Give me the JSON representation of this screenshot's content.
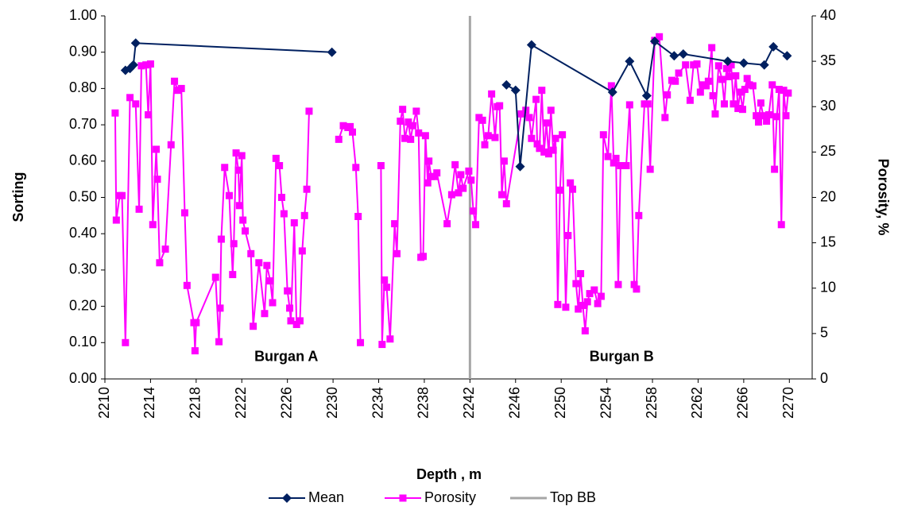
{
  "chart_data": {
    "type": "line",
    "xlabel": "Depth , m",
    "ylabel": "Sorting",
    "y2label": "Porosity, %",
    "xlim": [
      2210,
      2272
    ],
    "ylim": [
      0,
      1
    ],
    "y2lim": [
      0,
      40
    ],
    "xticks": [
      2210,
      2214,
      2218,
      2222,
      2226,
      2230,
      2234,
      2238,
      2242,
      2246,
      2250,
      2254,
      2258,
      2262,
      2266,
      2270
    ],
    "yticks": [
      {
        "value": 0,
        "label": "0.00"
      },
      {
        "value": 0.1,
        "label": "0.10"
      },
      {
        "value": 0.2,
        "label": "0.20"
      },
      {
        "value": 0.3,
        "label": "0.30"
      },
      {
        "value": 0.4,
        "label": "0.40"
      },
      {
        "value": 0.5,
        "label": "0.50"
      },
      {
        "value": 0.6,
        "label": "0.60"
      },
      {
        "value": 0.7,
        "label": "0.70"
      },
      {
        "value": 0.8,
        "label": "0.80"
      },
      {
        "value": 0.9,
        "label": "0.90"
      },
      {
        "value": 1,
        "label": "1.00"
      }
    ],
    "y2ticks": [
      0,
      5,
      10,
      15,
      20,
      25,
      30,
      35,
      40
    ],
    "legend": "bottom",
    "annotations": [
      {
        "text": "Burgan A",
        "x": 2225.9,
        "y": 0.06
      },
      {
        "text": "Burgan B",
        "x": 2255.3,
        "y": 0.06
      }
    ],
    "series": [
      {
        "name": "Mean",
        "color": "#002060",
        "marker": "diamond",
        "x": [
          2211.8,
          2212.2,
          2212.5,
          2212.7,
          2229.9,
          null,
          2245.2,
          2246.0,
          2246.4,
          2247.4,
          2254.5,
          2256.0,
          2257.5,
          2258.2,
          2259.9,
          2260.7,
          2264.6,
          2266.0,
          2267.8,
          2268.6,
          2269.8
        ],
        "values": [
          0.85,
          0.855,
          0.865,
          0.925,
          0.9,
          null,
          0.81,
          0.795,
          0.585,
          0.92,
          0.79,
          0.875,
          0.78,
          0.93,
          0.89,
          0.895,
          0.875,
          0.87,
          0.865,
          0.915,
          0.89
        ]
      },
      {
        "name": "Porosity",
        "color": "#ff00ff",
        "marker": "square",
        "axis": "y2",
        "x": [
          2210.9,
          2211.0,
          2211.3,
          2211.5,
          2211.8,
          2212.2,
          2212.7,
          2213.0,
          2213.2,
          2213.6,
          2213.8,
          2214.0,
          2214.2,
          2214.5,
          2214.6,
          2214.8,
          2215.3,
          2215.8,
          2216.1,
          2216.4,
          2216.7,
          2217.0,
          2217.2,
          2217.8,
          2217.9,
          2218.0,
          2219.7,
          2220.0,
          2220.1,
          2220.2,
          2220.5,
          2220.9,
          2221.2,
          2221.3,
          2221.5,
          2221.7,
          2221.8,
          2222.0,
          2222.1,
          2222.3,
          2222.8,
          2223.0,
          2223.5,
          2224.0,
          2224.2,
          2224.5,
          2224.7,
          2225.0,
          2225.3,
          2225.5,
          2225.7,
          2226.0,
          2226.2,
          2226.3,
          2226.6,
          2226.8,
          2227.1,
          2227.3,
          2227.5,
          2227.7,
          2227.9,
          null,
          2230.5,
          2230.9,
          2231.3,
          2231.5,
          2231.7,
          2232.0,
          2232.2,
          2232.4,
          null,
          2234.2,
          2234.3,
          2234.5,
          2234.7,
          2235.0,
          2235.4,
          2235.6,
          2235.9,
          2236.1,
          2236.3,
          2236.6,
          2236.8,
          2237.0,
          2237.3,
          2237.5,
          2237.7,
          2237.9,
          2238.1,
          2238.3,
          2238.4,
          2238.6,
          2238.9,
          2239.1,
          2240.0,
          2240.4,
          2240.7,
          2241.0,
          2241.2,
          2241.4,
          2241.9,
          2242.1,
          2242.3,
          2242.5,
          2242.8,
          2243.1,
          2243.3,
          2243.6,
          2243.9,
          2244.2,
          2244.4,
          2244.6,
          2244.8,
          2245.0,
          2245.2,
          2246.5,
          2246.9,
          2247.2,
          2247.4,
          2247.8,
          2247.9,
          2248.1,
          2248.3,
          2248.5,
          2248.7,
          2248.9,
          2249.1,
          2249.3,
          2249.5,
          2249.7,
          2249.9,
          2250.1,
          2250.4,
          2250.6,
          2250.8,
          2251.0,
          2251.3,
          2251.5,
          2251.7,
          2251.9,
          2252.1,
          2252.3,
          2252.5,
          2252.9,
          2253.2,
          2253.5,
          2253.7,
          2254.1,
          2254.4,
          2254.6,
          2254.8,
          2255.0,
          2255.2,
          2255.7,
          2256.0,
          2256.4,
          2256.6,
          2256.8,
          2257.3,
          2257.6,
          2257.8,
          2258.2,
          2258.6,
          2259.1,
          2259.3,
          2259.7,
          2260.0,
          2260.3,
          2260.9,
          2261.3,
          2261.6,
          2261.9,
          2262.2,
          2262.4,
          2262.7,
          2262.9,
          2263.2,
          2263.3,
          2263.5,
          2263.8,
          2264.1,
          2264.3,
          2264.5,
          2264.7,
          2264.9,
          2265.1,
          2265.3,
          2265.5,
          2265.7,
          2265.9,
          2266.1,
          2266.3,
          2266.5,
          2266.8,
          2267.1,
          2267.3,
          2267.5,
          2267.7,
          2268.0,
          2268.2,
          2268.5,
          2268.7,
          2268.9,
          2269.1,
          2269.3,
          2269.5,
          2269.7,
          2269.9
        ],
        "values": [
          29.3,
          17.5,
          20.2,
          20.2,
          4,
          31,
          30.3,
          18.7,
          34.5,
          34.6,
          29.1,
          34.7,
          17,
          25.3,
          22,
          12.8,
          14.3,
          25.8,
          32.8,
          31.8,
          32,
          18.3,
          10.3,
          6.2,
          3.1,
          6.2,
          11.2,
          4.1,
          7.8,
          15.4,
          23.3,
          20.2,
          11.5,
          14.9,
          24.9,
          23,
          19.1,
          24.6,
          17.5,
          16.3,
          13.8,
          5.8,
          12.8,
          7.2,
          12.5,
          10.8,
          8.4,
          24.3,
          23.5,
          20,
          18.2,
          9.7,
          7.8,
          6.4,
          17.2,
          6,
          6.4,
          14.1,
          18,
          20.9,
          29.5,
          null,
          26.4,
          27.9,
          27.7,
          27.8,
          27.2,
          23.3,
          17.9,
          4,
          null,
          23.5,
          3.8,
          10.9,
          10.1,
          4.4,
          17.1,
          13.8,
          28.4,
          29.7,
          26.5,
          28.3,
          26.4,
          27.9,
          29.5,
          27.1,
          13.4,
          13.5,
          26.8,
          21.6,
          24,
          22.3,
          22.3,
          22.7,
          17.1,
          20.3,
          23.6,
          20.5,
          22.5,
          21,
          22.9,
          21.9,
          18.5,
          17,
          28.8,
          28.5,
          25.8,
          26.8,
          31.4,
          26.6,
          30,
          30.1,
          20.3,
          24,
          19.3,
          29.2,
          29.6,
          28.8,
          26.5,
          30.8,
          25.9,
          25.4,
          31.8,
          25,
          28.2,
          24.8,
          29.6,
          25.2,
          26.5,
          8.2,
          20.8,
          26.9,
          7.9,
          15.8,
          21.6,
          20.9,
          10.5,
          7.7,
          11.6,
          8.1,
          5.3,
          8.5,
          9.4,
          9.8,
          8.3,
          9.1,
          26.9,
          24.5,
          32.3,
          23.8,
          24.3,
          10.4,
          23.5,
          23.5,
          30.2,
          10.4,
          9.9,
          18,
          30.3,
          30.3,
          23.1,
          37.3,
          37.7,
          28.8,
          31.3,
          32.9,
          32.8,
          33.7,
          34.6,
          30.7,
          34.6,
          34.7,
          31.6,
          32.4,
          32.3,
          32.8,
          36.5,
          31.2,
          29.2,
          34.5,
          33,
          30.3,
          34.2,
          33.3,
          34.6,
          30.3,
          33.4,
          29.8,
          31.6,
          29.7,
          31.9,
          33.1,
          32.4,
          32.3,
          29,
          28.3,
          30.4,
          29,
          28.4,
          29.1,
          32.4,
          23.1,
          28.9,
          31.9,
          17,
          31.8,
          29,
          31.5
        ]
      },
      {
        "name": "Top BB",
        "color": "#a6a6a6",
        "marker": "none",
        "x": [
          2242,
          2242
        ],
        "values": [
          0,
          1
        ]
      }
    ]
  }
}
